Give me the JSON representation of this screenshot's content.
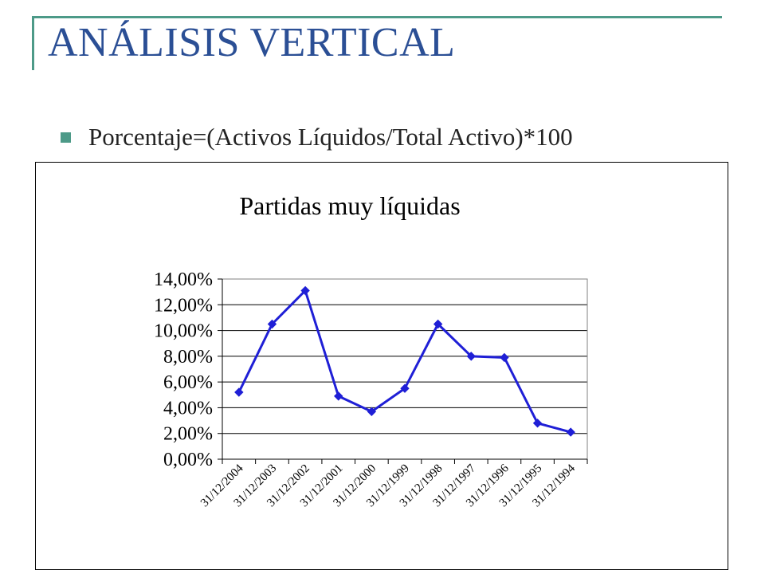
{
  "slide": {
    "title": "ANÁLISIS VERTICAL",
    "bullet": "Porcentaje=(Activos Líquidos/Total Activo)*100",
    "accent_color": "#4d9a88",
    "title_color": "#2b4f95"
  },
  "chart_data": {
    "type": "line",
    "title": "Partidas muy líquidas",
    "xlabel": "",
    "ylabel": "",
    "categories": [
      "31/12/2004",
      "31/12/2003",
      "31/12/2002",
      "31/12/2001",
      "31/12/2000",
      "31/12/1999",
      "31/12/1998",
      "31/12/1997",
      "31/12/1996",
      "31/12/1995",
      "31/12/1994"
    ],
    "values": [
      5.2,
      10.5,
      13.1,
      4.9,
      3.7,
      5.5,
      10.5,
      8.0,
      7.9,
      2.8,
      2.1
    ],
    "yticks": [
      "0,00%",
      "2,00%",
      "4,00%",
      "6,00%",
      "8,00%",
      "10,00%",
      "12,00%",
      "14,00%"
    ],
    "ylim": [
      0,
      14
    ],
    "grid": true,
    "legend": "none",
    "line_color": "#1f1fd6"
  }
}
